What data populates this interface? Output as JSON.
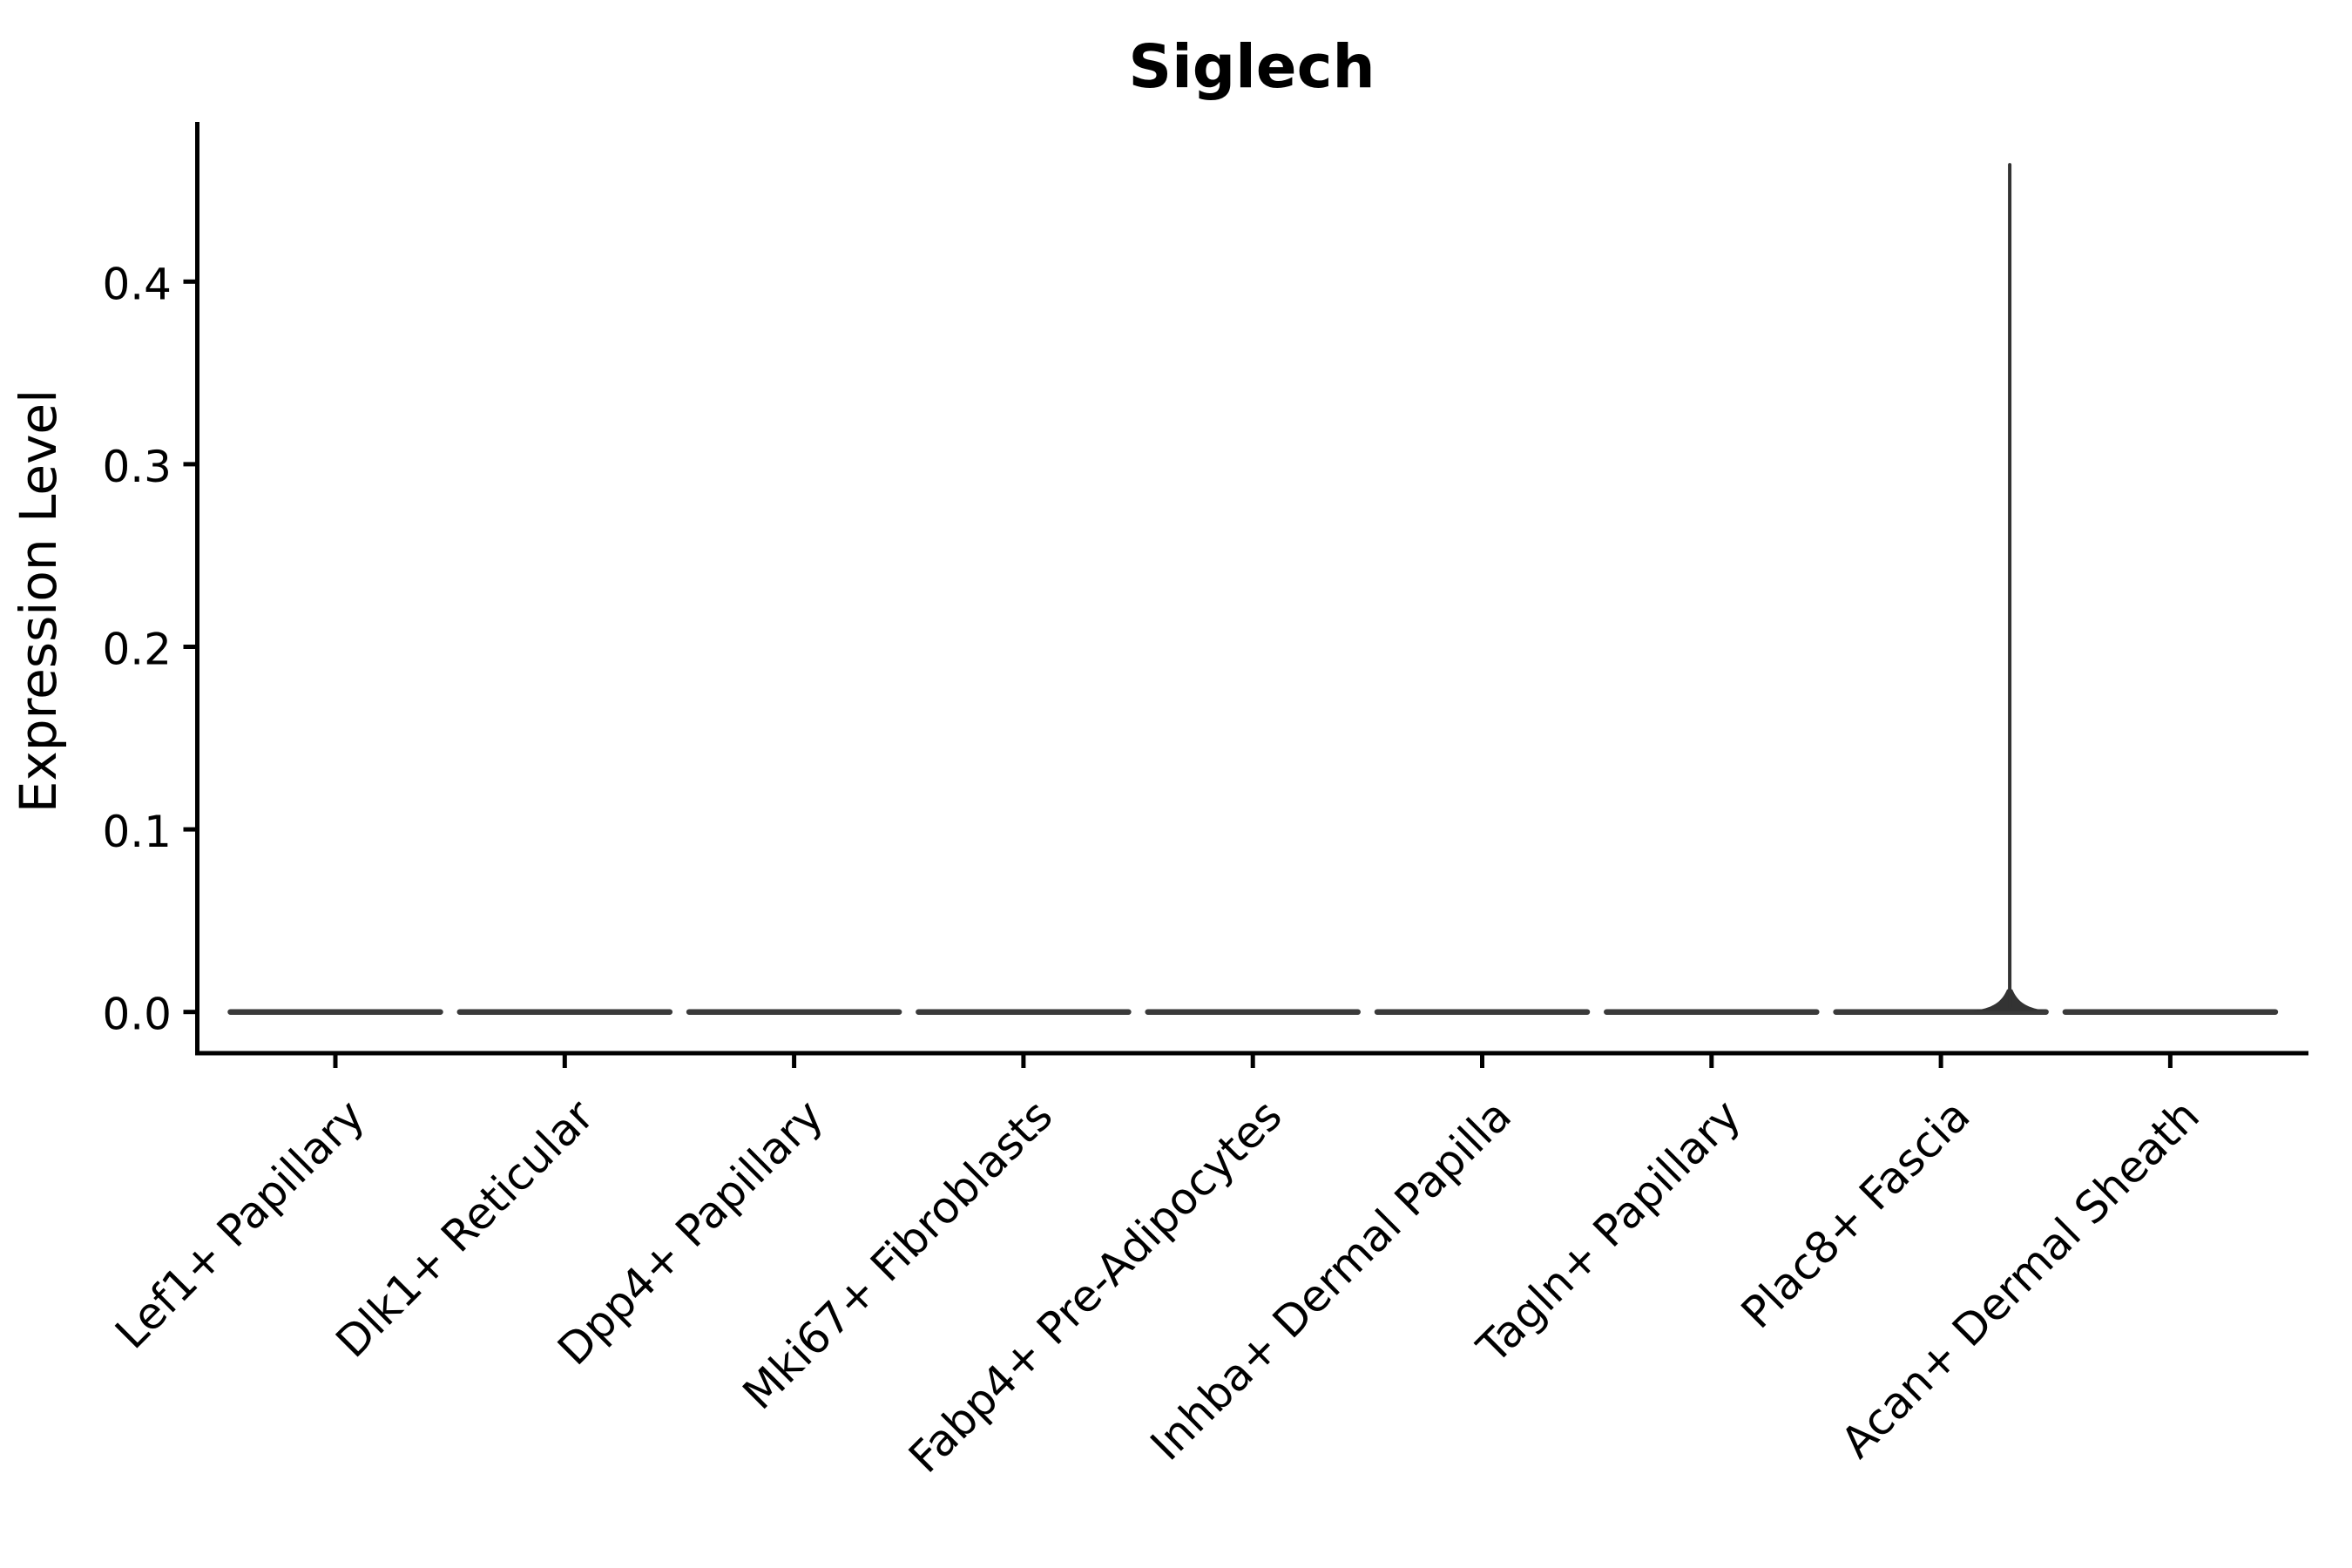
{
  "chart_data": {
    "type": "violin",
    "title": "Siglech",
    "ylabel": "Expression Level",
    "xlabel": "",
    "categories": [
      "Lef1+ Papillary",
      "Dlk1+ Reticular",
      "Dpp4+ Papillary",
      "Mki67+ Fibroblasts",
      "Fabp4+ Pre-Adipocytes",
      "Inhba+ Dermal Papilla",
      "Tagln+ Papillary",
      "Plac8+ Fascia",
      "Acan+ Dermal Sheath"
    ],
    "yticks": [
      0.0,
      0.1,
      0.2,
      0.3,
      0.4
    ],
    "ytick_labels": [
      "0.0",
      "0.1",
      "0.2",
      "0.3",
      "0.4"
    ],
    "ylim": [
      -0.023,
      0.487
    ],
    "grid": false,
    "legend": "none",
    "x_tick_rotation_deg": 45,
    "violins": [
      {
        "category": "Lef1+ Papillary",
        "median": 0.0,
        "max": 0.0,
        "shape": "flat"
      },
      {
        "category": "Dlk1+ Reticular",
        "median": 0.0,
        "max": 0.0,
        "shape": "flat"
      },
      {
        "category": "Dpp4+ Papillary",
        "median": 0.0,
        "max": 0.0,
        "shape": "flat"
      },
      {
        "category": "Mki67+ Fibroblasts",
        "median": 0.0,
        "max": 0.0,
        "shape": "flat"
      },
      {
        "category": "Fabp4+ Pre-Adipocytes",
        "median": 0.0,
        "max": 0.0,
        "shape": "flat"
      },
      {
        "category": "Inhba+ Dermal Papilla",
        "median": 0.0,
        "max": 0.0,
        "shape": "flat"
      },
      {
        "category": "Tagln+ Papillary",
        "median": 0.0,
        "max": 0.0,
        "shape": "flat"
      },
      {
        "category": "Plac8+ Fascia",
        "median": 0.0,
        "max": 0.464,
        "shape": "flat-with-spike",
        "spike_x_offset_frac": 0.3
      },
      {
        "category": "Acan+ Dermal Sheath",
        "median": 0.0,
        "max": 0.0,
        "shape": "flat"
      }
    ],
    "colors": {
      "violin": "#3a3a3a",
      "spike": "#333333",
      "axis": "#000000",
      "text": "#000000",
      "background": "#ffffff"
    }
  }
}
